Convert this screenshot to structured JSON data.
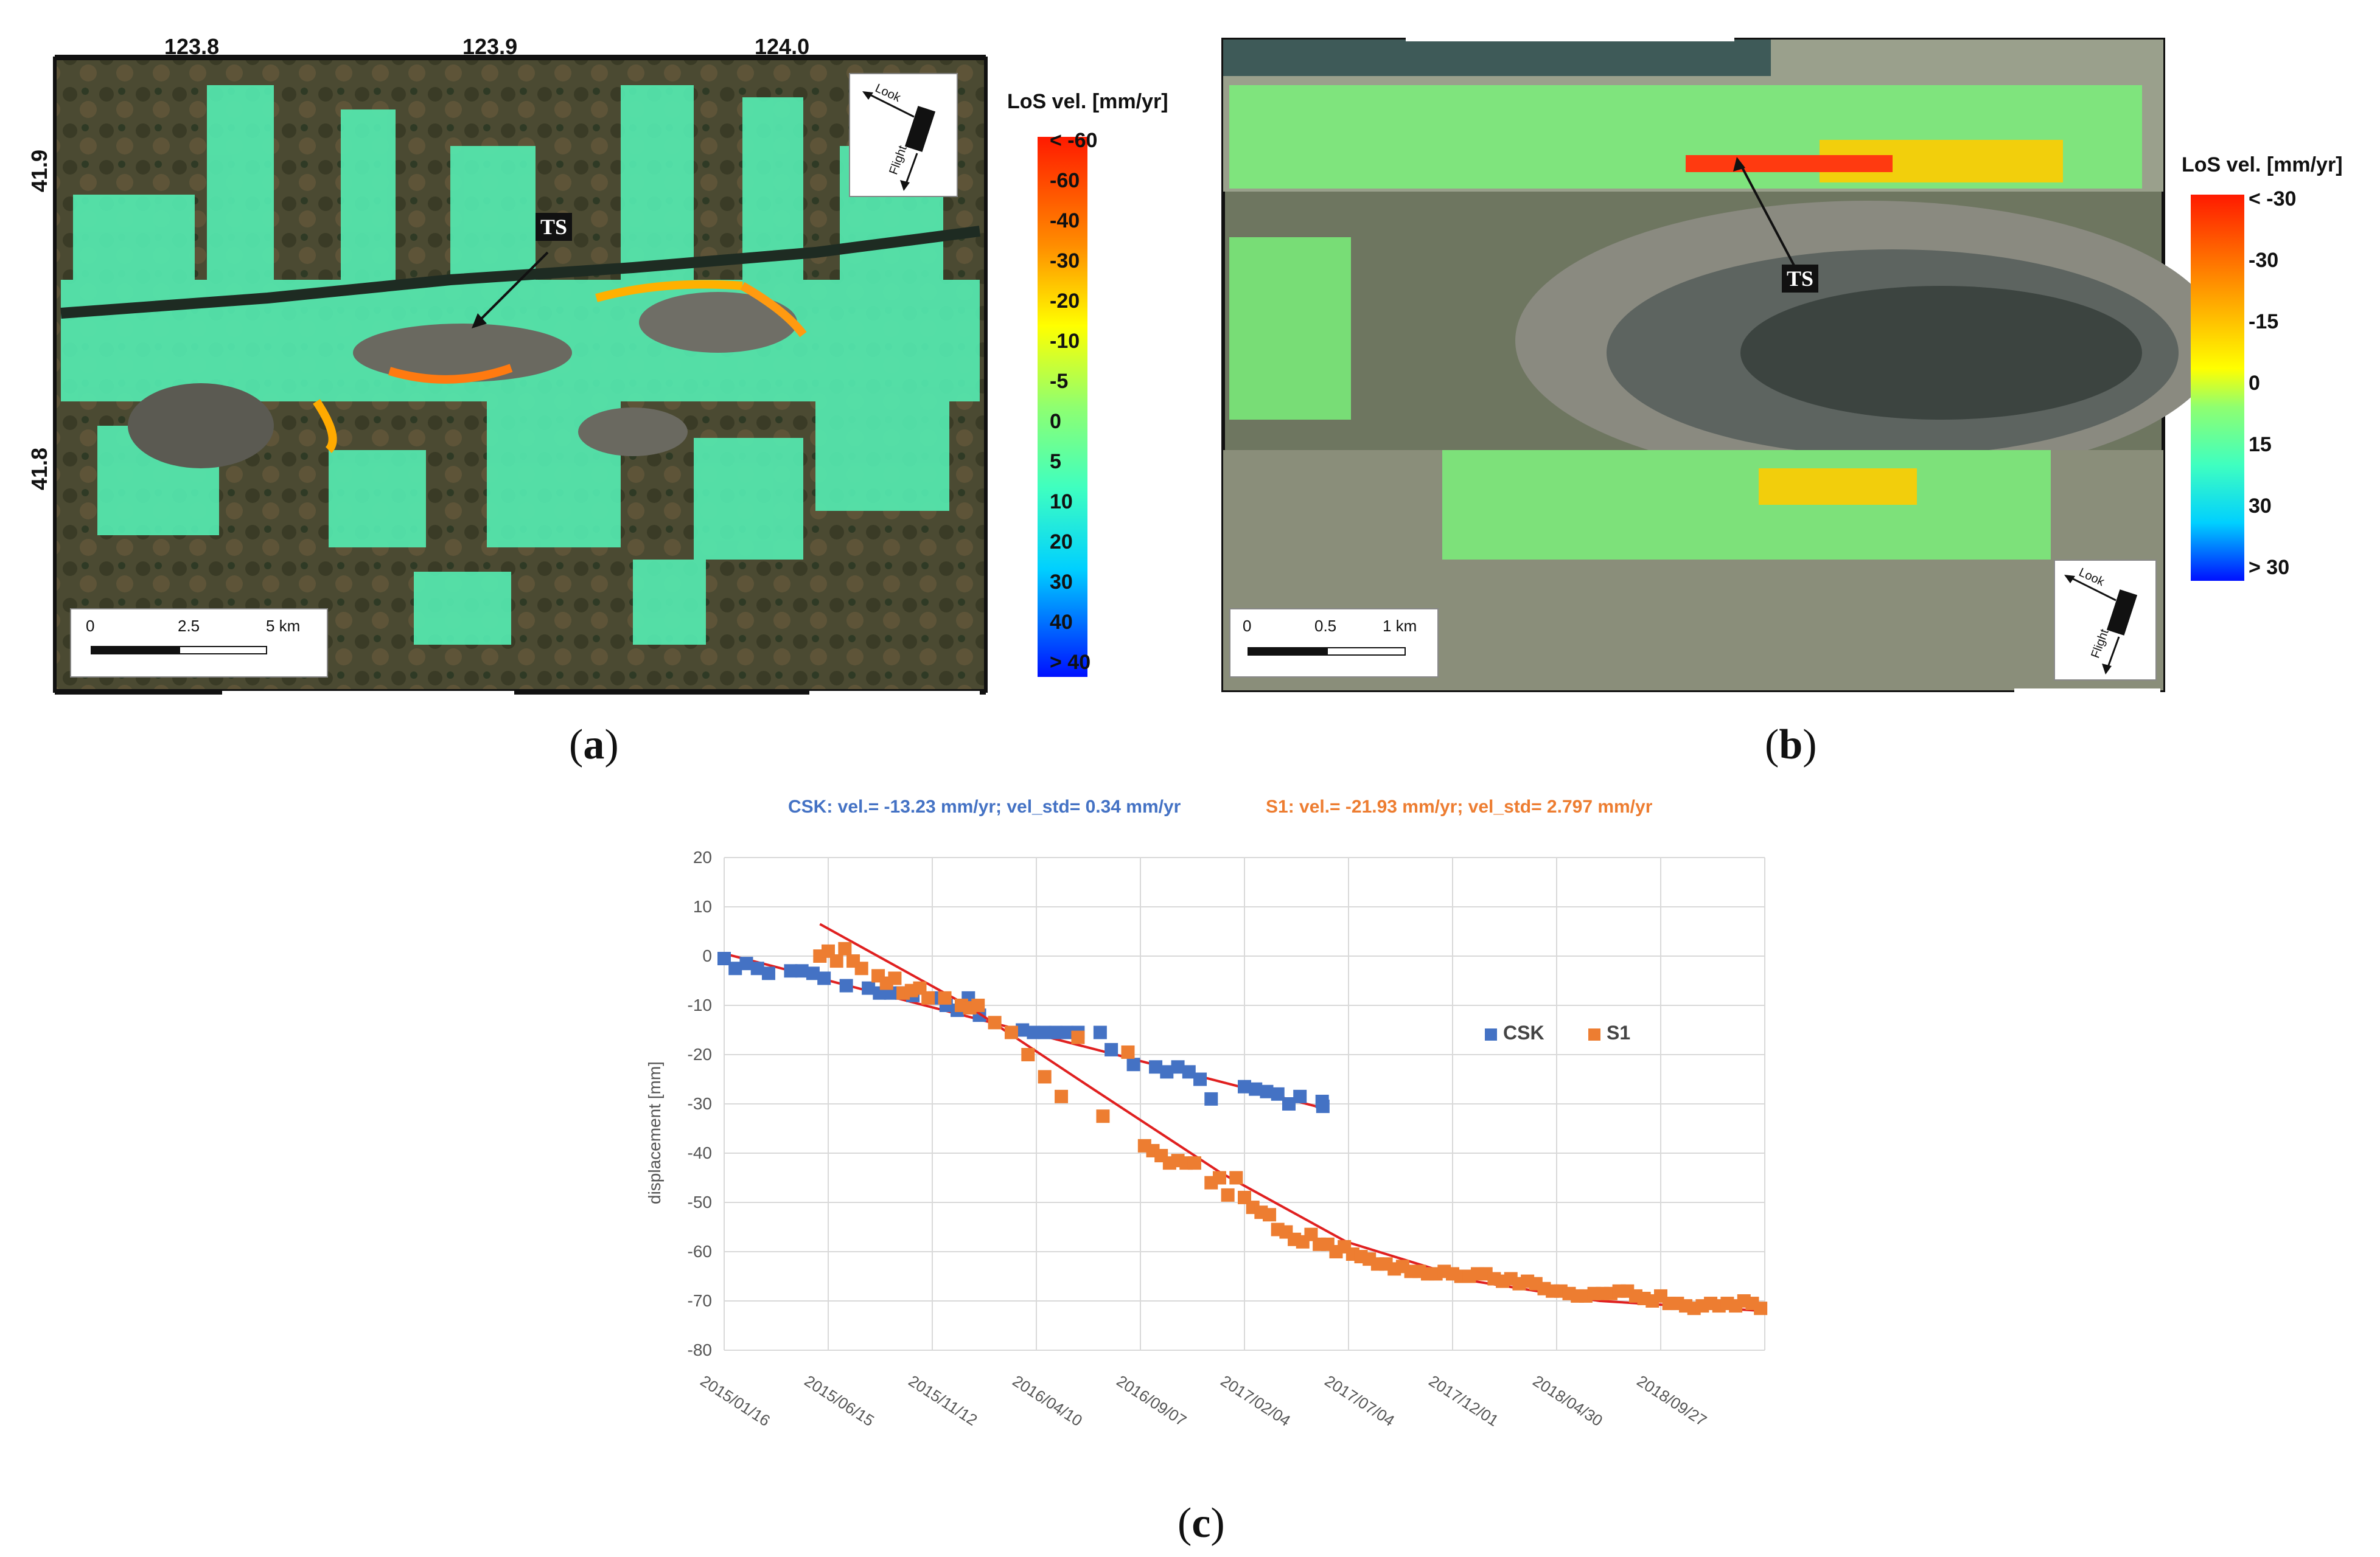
{
  "panel_a": {
    "caption_letter": "a",
    "top_ticks": [
      "123.8",
      "123.9",
      "124.0"
    ],
    "side_ticks": [
      "41.9",
      "41.8"
    ],
    "legend_title": "LoS vel. [mm/yr]",
    "colorbar_labels": [
      "< -60",
      "-60",
      "-40",
      "-30",
      "-20",
      "-10",
      "-5",
      "0",
      "5",
      "10",
      "20",
      "30",
      "40",
      "> 40"
    ],
    "scale_labels": [
      "0",
      "2.5",
      "5 km"
    ],
    "ts_label": "TS",
    "compass": {
      "look": "Look",
      "flight": "Flight"
    }
  },
  "panel_b": {
    "caption_letter": "b",
    "legend_title": "LoS vel. [mm/yr]",
    "colorbar_labels": [
      "< -30",
      "-30",
      "-15",
      "0",
      "15",
      "30",
      "> 30"
    ],
    "scale_labels": [
      "0",
      "0.5",
      "1 km"
    ],
    "ts_label": "TS",
    "compass": {
      "look": "Look",
      "flight": "Flight"
    }
  },
  "panel_c": {
    "caption_letter": "c",
    "title_csk": "CSK: vel.= -13.23 mm/yr; vel_std= 0.34 mm/yr",
    "title_s1": "S1: vel.= -21.93 mm/yr; vel_std= 2.797 mm/yr",
    "colors": {
      "csk": "#4472c4",
      "s1": "#ed7d31",
      "trend": "#e02020",
      "grid": "#d9d9d9"
    }
  },
  "chart_data": {
    "type": "scatter",
    "xlabel": "",
    "ylabel": "displacement [mm]",
    "ylim": [
      -80,
      20
    ],
    "yticks": [
      20,
      10,
      0,
      -10,
      -20,
      -30,
      -40,
      -50,
      -60,
      -70,
      -80
    ],
    "x_tick_labels": [
      "2015/01/16",
      "2015/06/15",
      "2015/11/12",
      "2016/04/10",
      "2016/09/07",
      "2017/02/04",
      "2017/07/04",
      "2017/12/01",
      "2018/04/30",
      "2018/09/27"
    ],
    "xlim": [
      "2015/01/16",
      "2019/02/24"
    ],
    "grid": true,
    "legend_position": "right",
    "series": [
      {
        "name": "CSK",
        "color": "#4472c4",
        "points": [
          [
            "2015/01/16",
            -0.5
          ],
          [
            "2015/02/01",
            -2.5
          ],
          [
            "2015/02/17",
            -1.5
          ],
          [
            "2015/03/05",
            -2.5
          ],
          [
            "2015/03/21",
            -3.5
          ],
          [
            "2015/04/22",
            -3
          ],
          [
            "2015/05/08",
            -3
          ],
          [
            "2015/05/24",
            -3.5
          ],
          [
            "2015/06/09",
            -4.5
          ],
          [
            "2015/07/11",
            -6
          ],
          [
            "2015/08/12",
            -6.5
          ],
          [
            "2015/08/28",
            -7.5
          ],
          [
            "2015/09/13",
            -7.5
          ],
          [
            "2015/09/29",
            -7.5
          ],
          [
            "2015/10/15",
            -8
          ],
          [
            "2015/11/16",
            -8.5
          ],
          [
            "2015/12/02",
            -10
          ],
          [
            "2015/12/18",
            -11
          ],
          [
            "2016/01/03",
            -8.5
          ],
          [
            "2016/01/19",
            -12
          ],
          [
            "2016/03/21",
            -15
          ],
          [
            "2016/04/06",
            -15.5
          ],
          [
            "2016/04/22",
            -15.5
          ],
          [
            "2016/05/08",
            -15.5
          ],
          [
            "2016/05/24",
            -15.5
          ],
          [
            "2016/06/09",
            -15.5
          ],
          [
            "2016/07/11",
            -15.5
          ],
          [
            "2016/07/27",
            -19
          ],
          [
            "2016/08/28",
            -22
          ],
          [
            "2016/09/29",
            -22.5
          ],
          [
            "2016/10/15",
            -23.5
          ],
          [
            "2016/10/31",
            -22.5
          ],
          [
            "2016/11/16",
            -23.5
          ],
          [
            "2016/12/02",
            -25
          ],
          [
            "2016/12/18",
            -29
          ],
          [
            "2017/02/04",
            -26.5
          ],
          [
            "2017/02/20",
            -27
          ],
          [
            "2017/03/08",
            -27.5
          ],
          [
            "2017/03/24",
            -28
          ],
          [
            "2017/04/09",
            -30
          ],
          [
            "2017/04/25",
            -28.5
          ],
          [
            "2017/05/27",
            -29.5
          ],
          [
            "2017/05/28",
            -30.5
          ]
        ],
        "trendline": [
          [
            "2015/01/16",
            0.5
          ],
          [
            "2017/06/01",
            -31
          ]
        ]
      },
      {
        "name": "S1",
        "color": "#ed7d31",
        "points": [
          [
            "2015/06/03",
            0
          ],
          [
            "2015/06/15",
            1
          ],
          [
            "2015/06/27",
            -1
          ],
          [
            "2015/07/09",
            1.5
          ],
          [
            "2015/07/21",
            -1
          ],
          [
            "2015/08/02",
            -2.5
          ],
          [
            "2015/08/26",
            -4
          ],
          [
            "2015/09/07",
            -5.5
          ],
          [
            "2015/09/19",
            -4.5
          ],
          [
            "2015/10/01",
            -7.5
          ],
          [
            "2015/10/13",
            -7
          ],
          [
            "2015/10/25",
            -6.5
          ],
          [
            "2015/11/06",
            -8.5
          ],
          [
            "2015/11/30",
            -8.5
          ],
          [
            "2015/12/24",
            -10
          ],
          [
            "2016/01/05",
            -10.5
          ],
          [
            "2016/01/17",
            -10
          ],
          [
            "2016/02/10",
            -13.5
          ],
          [
            "2016/03/05",
            -15.5
          ],
          [
            "2016/03/29",
            -20
          ],
          [
            "2016/04/22",
            -24.5
          ],
          [
            "2016/05/16",
            -28.5
          ],
          [
            "2016/06/09",
            -16.5
          ],
          [
            "2016/07/15",
            -32.5
          ],
          [
            "2016/08/20",
            -19.5
          ],
          [
            "2016/09/13",
            -38.5
          ],
          [
            "2016/09/25",
            -39.5
          ],
          [
            "2016/10/07",
            -40.5
          ],
          [
            "2016/10/19",
            -42
          ],
          [
            "2016/10/31",
            -41.5
          ],
          [
            "2016/11/12",
            -42
          ],
          [
            "2016/11/24",
            -42
          ],
          [
            "2016/12/18",
            -46
          ],
          [
            "2016/12/30",
            -45
          ],
          [
            "2017/01/11",
            -48.5
          ],
          [
            "2017/01/23",
            -45
          ],
          [
            "2017/02/04",
            -49
          ],
          [
            "2017/02/16",
            -51
          ],
          [
            "2017/02/28",
            -52
          ],
          [
            "2017/03/12",
            -52.5
          ],
          [
            "2017/03/24",
            -55.5
          ],
          [
            "2017/04/05",
            -56
          ],
          [
            "2017/04/17",
            -57.5
          ],
          [
            "2017/04/29",
            -58
          ],
          [
            "2017/05/11",
            -56.5
          ],
          [
            "2017/05/23",
            -58.5
          ],
          [
            "2017/06/04",
            -58.5
          ],
          [
            "2017/06/16",
            -60
          ],
          [
            "2017/06/28",
            -59
          ],
          [
            "2017/07/10",
            -60.5
          ],
          [
            "2017/07/22",
            -61
          ],
          [
            "2017/08/03",
            -61.5
          ],
          [
            "2017/08/15",
            -62.5
          ],
          [
            "2017/08/27",
            -62.5
          ],
          [
            "2017/09/08",
            -63.5
          ],
          [
            "2017/09/20",
            -63
          ],
          [
            "2017/10/02",
            -64
          ],
          [
            "2017/10/14",
            -64
          ],
          [
            "2017/10/26",
            -64.5
          ],
          [
            "2017/11/07",
            -64.5
          ],
          [
            "2017/11/19",
            -64
          ],
          [
            "2017/12/01",
            -64.5
          ],
          [
            "2017/12/13",
            -65
          ],
          [
            "2017/12/25",
            -65
          ],
          [
            "2018/01/06",
            -64.5
          ],
          [
            "2018/01/18",
            -64.5
          ],
          [
            "2018/01/30",
            -65.5
          ],
          [
            "2018/02/11",
            -66
          ],
          [
            "2018/02/23",
            -65.5
          ],
          [
            "2018/03/07",
            -66.5
          ],
          [
            "2018/03/19",
            -66
          ],
          [
            "2018/03/31",
            -66.5
          ],
          [
            "2018/04/12",
            -67.5
          ],
          [
            "2018/04/24",
            -68
          ],
          [
            "2018/05/06",
            -68
          ],
          [
            "2018/05/18",
            -68.5
          ],
          [
            "2018/05/30",
            -69
          ],
          [
            "2018/06/11",
            -69
          ],
          [
            "2018/06/23",
            -68.5
          ],
          [
            "2018/07/05",
            -68.5
          ],
          [
            "2018/07/17",
            -68.5
          ],
          [
            "2018/07/29",
            -68
          ],
          [
            "2018/08/10",
            -68
          ],
          [
            "2018/08/22",
            -69
          ],
          [
            "2018/09/03",
            -69.5
          ],
          [
            "2018/09/15",
            -70
          ],
          [
            "2018/09/27",
            -69
          ],
          [
            "2018/10/09",
            -70.5
          ],
          [
            "2018/10/21",
            -70.5
          ],
          [
            "2018/11/02",
            -71
          ],
          [
            "2018/11/14",
            -71.5
          ],
          [
            "2018/11/26",
            -71
          ],
          [
            "2018/12/08",
            -70.5
          ],
          [
            "2018/12/20",
            -71
          ],
          [
            "2019/01/01",
            -70.5
          ],
          [
            "2019/01/13",
            -71
          ],
          [
            "2019/01/25",
            -70
          ],
          [
            "2019/02/06",
            -70.5
          ],
          [
            "2019/02/18",
            -71.5
          ]
        ],
        "trendline": [
          [
            "2015/06/03",
            6.5
          ],
          [
            "2016/01/01",
            -10
          ],
          [
            "2016/07/01",
            -27
          ],
          [
            "2017/01/01",
            -44
          ],
          [
            "2017/07/01",
            -58
          ],
          [
            "2018/01/01",
            -66
          ],
          [
            "2018/07/01",
            -70
          ],
          [
            "2019/02/20",
            -72
          ]
        ]
      }
    ]
  }
}
